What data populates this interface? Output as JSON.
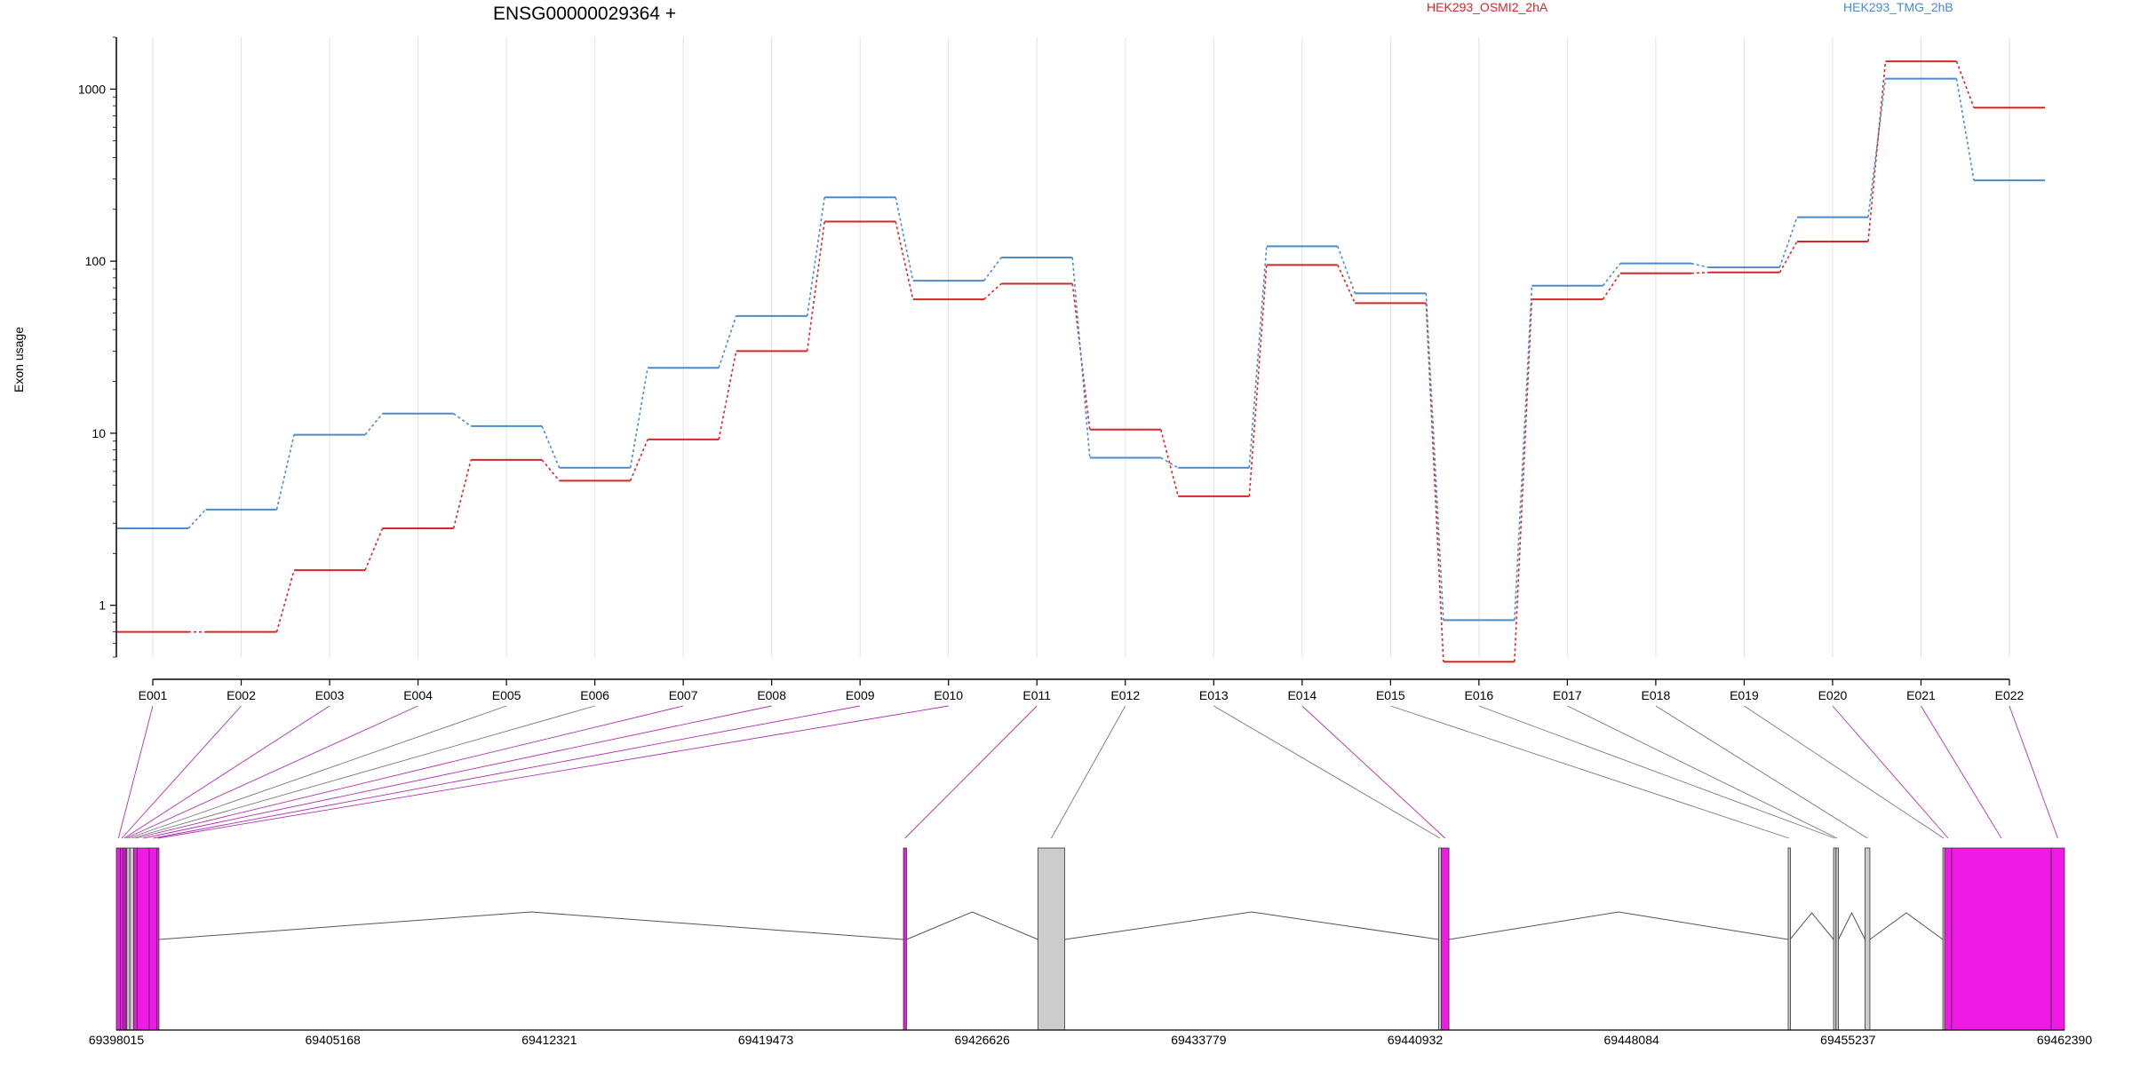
{
  "chart_data": {
    "type": "line",
    "title": "ENSG00000029364 +",
    "ylabel": "Exon usage",
    "xlabel": "",
    "yscale": "log",
    "ylim": [
      0.5,
      2000
    ],
    "yticks": [
      1,
      10,
      100,
      1000
    ],
    "ytick_labels": [
      "1",
      "10",
      "100",
      "1000"
    ],
    "grid": "vertical",
    "legend_placement": "top",
    "categories": [
      "E001",
      "E002",
      "E003",
      "E004",
      "E005",
      "E006",
      "E007",
      "E008",
      "E009",
      "E010",
      "E011",
      "E012",
      "E013",
      "E014",
      "E015",
      "E016",
      "E017",
      "E018",
      "E019",
      "E020",
      "E021",
      "E022"
    ],
    "series": [
      {
        "name": "HEK293_OSMI2_2hA",
        "color": "#d62728",
        "values": [
          0.7,
          0.7,
          1.6,
          2.8,
          7.0,
          5.3,
          9.2,
          30,
          170,
          60,
          74,
          10.5,
          4.3,
          95,
          57,
          0.47,
          60,
          85,
          86,
          130,
          1450,
          780
        ]
      },
      {
        "name": "HEK293_TMG_2hB",
        "color": "#4a8bc9",
        "values": [
          2.8,
          3.6,
          9.8,
          13,
          11,
          6.3,
          24,
          48,
          235,
          77,
          105,
          7.2,
          6.3,
          122,
          65,
          0.82,
          72,
          97,
          92,
          180,
          1150,
          295
        ]
      }
    ],
    "gene_model": {
      "genomic_range": [
        69398015,
        69462390
      ],
      "axis_ticks": [
        69398015,
        69405168,
        69412321,
        69419473,
        69426626,
        69433779,
        69440932,
        69448084,
        69455237,
        69462390
      ],
      "exons": [
        {
          "id": "E001",
          "start": 69398015,
          "end": 69398150,
          "used": true
        },
        {
          "id": "E002",
          "start": 69398150,
          "end": 69398240,
          "used": true
        },
        {
          "id": "E003",
          "start": 69398240,
          "end": 69398310,
          "used": true
        },
        {
          "id": "E004",
          "start": 69398310,
          "end": 69398360,
          "used": true
        },
        {
          "id": "E005",
          "start": 69398360,
          "end": 69398460,
          "used": false
        },
        {
          "id": "E006",
          "start": 69398460,
          "end": 69398590,
          "used": false
        },
        {
          "id": "E007",
          "start": 69398590,
          "end": 69398700,
          "used": true
        },
        {
          "id": "E008",
          "start": 69398700,
          "end": 69399100,
          "used": true
        },
        {
          "id": "E009",
          "start": 69399100,
          "end": 69399350,
          "used": true
        },
        {
          "id": "E010",
          "start": 69399350,
          "end": 69399420,
          "used": true
        },
        {
          "id": "E011",
          "start": 69424025,
          "end": 69424125,
          "used": true
        },
        {
          "id": "E012",
          "start": 69428470,
          "end": 69429350,
          "used": false
        },
        {
          "id": "E013",
          "start": 69441710,
          "end": 69441800,
          "used": false
        },
        {
          "id": "E014",
          "start": 69441800,
          "end": 69442050,
          "used": true
        },
        {
          "id": "E015",
          "start": 69453260,
          "end": 69453320,
          "used": false
        },
        {
          "id": "E016",
          "start": 69454760,
          "end": 69454840,
          "used": false
        },
        {
          "id": "E017",
          "start": 69454840,
          "end": 69454920,
          "used": false
        },
        {
          "id": "E018",
          "start": 69455800,
          "end": 69455960,
          "used": false
        },
        {
          "id": "E019",
          "start": 69458370,
          "end": 69458430,
          "used": false
        },
        {
          "id": "E020",
          "start": 69458430,
          "end": 69458660,
          "used": true
        },
        {
          "id": "E021",
          "start": 69458660,
          "end": 69461950,
          "used": true
        },
        {
          "id": "E022",
          "start": 69461950,
          "end": 69462390,
          "used": true
        }
      ]
    }
  }
}
